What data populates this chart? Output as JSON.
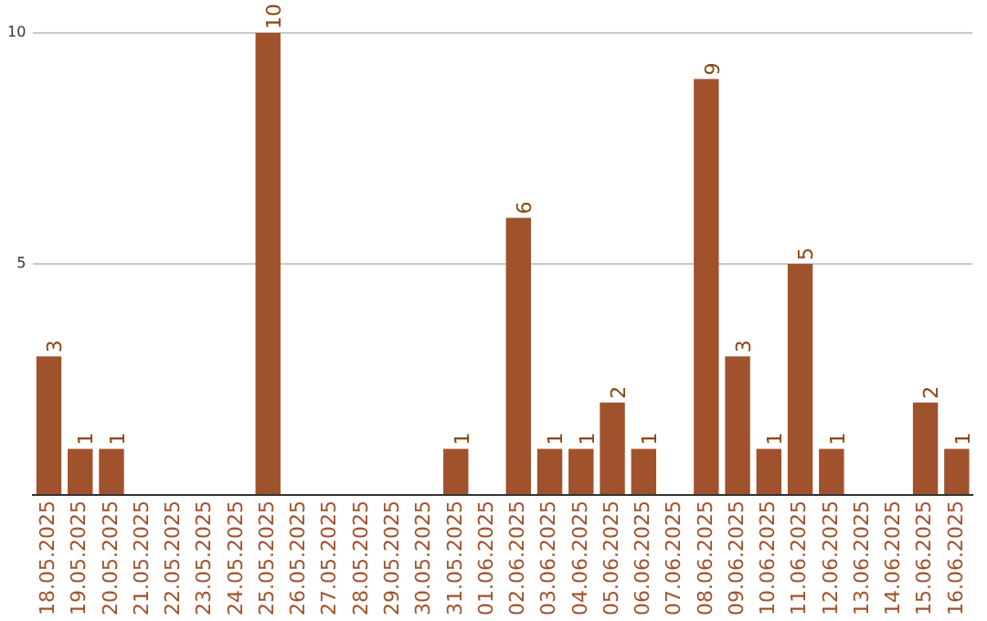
{
  "chart_data": {
    "type": "bar",
    "categories": [
      "18.05.2025",
      "19.05.2025",
      "20.05.2025",
      "21.05.2025",
      "22.05.2025",
      "23.05.2025",
      "24.05.2025",
      "25.05.2025",
      "26.05.2025",
      "27.05.2025",
      "28.05.2025",
      "29.05.2025",
      "30.05.2025",
      "31.05.2025",
      "01.06.2025",
      "02.06.2025",
      "03.06.2025",
      "04.06.2025",
      "05.06.2025",
      "06.06.2025",
      "07.06.2025",
      "08.06.2025",
      "09.06.2025",
      "10.06.2025",
      "11.06.2025",
      "12.06.2025",
      "13.06.2025",
      "14.06.2025",
      "15.06.2025",
      "16.06.2025"
    ],
    "values": [
      3,
      1,
      1,
      0,
      0,
      0,
      0,
      10,
      0,
      0,
      0,
      0,
      0,
      1,
      0,
      6,
      1,
      1,
      2,
      1,
      0,
      9,
      3,
      1,
      5,
      1,
      0,
      0,
      2,
      1
    ],
    "value_labels": [
      "3",
      "1",
      "1",
      null,
      null,
      null,
      null,
      "10",
      null,
      null,
      null,
      null,
      null,
      "1",
      null,
      "6",
      "1",
      "1",
      "2",
      "1",
      null,
      "9",
      "3",
      "1",
      "5",
      "1",
      null,
      null,
      "2",
      "1"
    ],
    "color": "#a0522d",
    "ylim": [
      0,
      10
    ],
    "yticks": [
      {
        "value": 0,
        "label": null
      },
      5,
      10
    ],
    "grid": "y",
    "legend": false
  }
}
